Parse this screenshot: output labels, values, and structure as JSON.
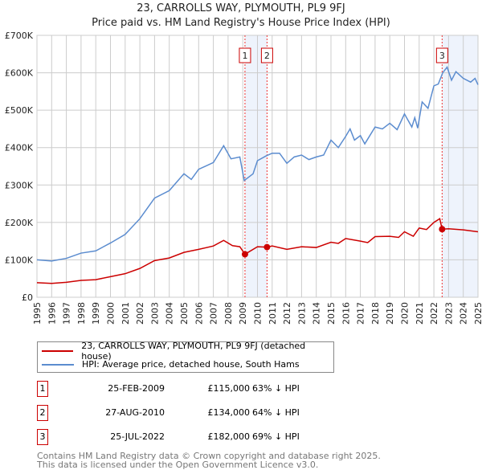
{
  "title": "23, CARROLLS WAY, PLYMOUTH, PL9 9FJ",
  "subtitle": "Price paid vs. HM Land Registry's House Price Index (HPI)",
  "chart_data": {
    "type": "line",
    "ylim": [
      0,
      700000
    ],
    "xlim": [
      1995,
      2025
    ],
    "yticks": [
      {
        "v": 0,
        "label": "£0"
      },
      {
        "v": 100000,
        "label": "£100K"
      },
      {
        "v": 200000,
        "label": "£200K"
      },
      {
        "v": 300000,
        "label": "£300K"
      },
      {
        "v": 400000,
        "label": "£400K"
      },
      {
        "v": 500000,
        "label": "£500K"
      },
      {
        "v": 600000,
        "label": "£600K"
      },
      {
        "v": 700000,
        "label": "£700K"
      }
    ],
    "xticks": [
      "1995",
      "1996",
      "1997",
      "1998",
      "1999",
      "2000",
      "2001",
      "2002",
      "2003",
      "2004",
      "2005",
      "2006",
      "2007",
      "2008",
      "2009",
      "2010",
      "2011",
      "2012",
      "2013",
      "2014",
      "2015",
      "2016",
      "2017",
      "2018",
      "2019",
      "2020",
      "2021",
      "2022",
      "2023",
      "2024",
      "2025"
    ],
    "series": [
      {
        "name": "23, CARROLLS WAY, PLYMOUTH, PL9 9FJ (detached house)",
        "color": "#cc0000",
        "x": [
          1995,
          1996,
          1997,
          1998,
          1999,
          2000,
          2001,
          2002,
          2003,
          2004,
          2005,
          2006,
          2007,
          2007.7,
          2008.3,
          2008.8,
          2009.15,
          2010,
          2010.65,
          2011,
          2012,
          2013,
          2014,
          2015,
          2015.5,
          2016,
          2017,
          2017.5,
          2018,
          2019,
          2019.6,
          2020,
          2020.6,
          2021,
          2021.5,
          2022,
          2022.4,
          2022.56,
          2023,
          2024,
          2025
        ],
        "y": [
          39000,
          37000,
          40000,
          45000,
          47000,
          55000,
          63000,
          77000,
          98000,
          105000,
          120000,
          128000,
          137000,
          152000,
          138000,
          135000,
          115000,
          135000,
          134000,
          137000,
          128000,
          135000,
          133000,
          147000,
          144000,
          157000,
          150000,
          146000,
          162000,
          163000,
          160000,
          175000,
          163000,
          185000,
          181000,
          200000,
          210000,
          182000,
          183000,
          180000,
          175000
        ]
      },
      {
        "name": "HPI: Average price, detached house, South Hams",
        "color": "#5b8ccf",
        "x": [
          1995,
          1996,
          1997,
          1998,
          1999,
          2000,
          2001,
          2002,
          2003,
          2004,
          2005,
          2005.5,
          2006,
          2007,
          2007.7,
          2008.2,
          2008.8,
          2009.1,
          2009.7,
          2010,
          2010.6,
          2011,
          2011.5,
          2012,
          2012.5,
          2013,
          2013.5,
          2014,
          2014.5,
          2015,
          2015.5,
          2016,
          2016.3,
          2016.6,
          2017,
          2017.3,
          2018,
          2018.5,
          2019,
          2019.5,
          2020,
          2020.5,
          2020.7,
          2020.9,
          2021.2,
          2021.6,
          2022,
          2022.3,
          2022.6,
          2022.9,
          2023.2,
          2023.5,
          2024,
          2024.5,
          2024.8,
          2025
        ],
        "y": [
          100000,
          97000,
          104000,
          118000,
          124000,
          145000,
          168000,
          210000,
          265000,
          285000,
          330000,
          315000,
          342000,
          360000,
          405000,
          370000,
          375000,
          312000,
          330000,
          365000,
          378000,
          385000,
          385000,
          358000,
          375000,
          380000,
          368000,
          375000,
          380000,
          420000,
          400000,
          430000,
          450000,
          420000,
          432000,
          410000,
          455000,
          450000,
          465000,
          448000,
          490000,
          455000,
          480000,
          452000,
          522000,
          505000,
          565000,
          570000,
          600000,
          615000,
          580000,
          603000,
          585000,
          575000,
          585000,
          568000
        ]
      }
    ],
    "sales": [
      {
        "label": "1",
        "x": 2009.15,
        "y": 115000,
        "date": "25-FEB-2009",
        "price": "£115,000",
        "hpi": "63% ↓ HPI"
      },
      {
        "label": "2",
        "x": 2010.65,
        "y": 134000,
        "date": "27-AUG-2010",
        "price": "£134,000",
        "hpi": "64% ↓ HPI"
      },
      {
        "label": "3",
        "x": 2022.56,
        "y": 182000,
        "date": "25-JUL-2022",
        "price": "£182,000",
        "hpi": "69% ↓ HPI"
      }
    ],
    "shaded": [
      [
        2009.15,
        2010.65
      ],
      [
        2022.56,
        2025
      ]
    ]
  },
  "legend": {
    "red": "23, CARROLLS WAY, PLYMOUTH, PL9 9FJ (detached house)",
    "blue": "HPI: Average price, detached house, South Hams"
  },
  "footer": {
    "line1": "Contains HM Land Registry data © Crown copyright and database right 2025.",
    "line2": "This data is licensed under the Open Government Licence v3.0."
  }
}
